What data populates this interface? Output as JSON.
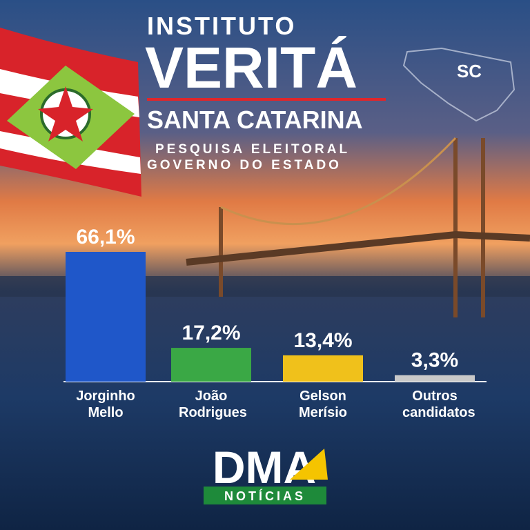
{
  "header": {
    "kicker": "INSTITUTO",
    "title": "VERITÁ",
    "region": "SANTA CATARINA",
    "line1": "PESQUISA ELEITORAL",
    "line2": "GOVERNO DO ESTADO",
    "map_label": "SC"
  },
  "chart_data": {
    "type": "bar",
    "categories": [
      "Jorginho Mello",
      "João Rodrigues",
      "Gelson Merísio",
      "Outros candidatos"
    ],
    "values": [
      66.1,
      17.2,
      13.4,
      3.3
    ],
    "value_labels": [
      "66,1%",
      "17,2%",
      "13,4%",
      "3,3%"
    ],
    "colors": [
      "#1f57c9",
      "#3aa845",
      "#f0c11b",
      "#c9c9c9"
    ]
  },
  "logo": {
    "brand": "DMA",
    "tagline": "NOTÍCIAS"
  }
}
